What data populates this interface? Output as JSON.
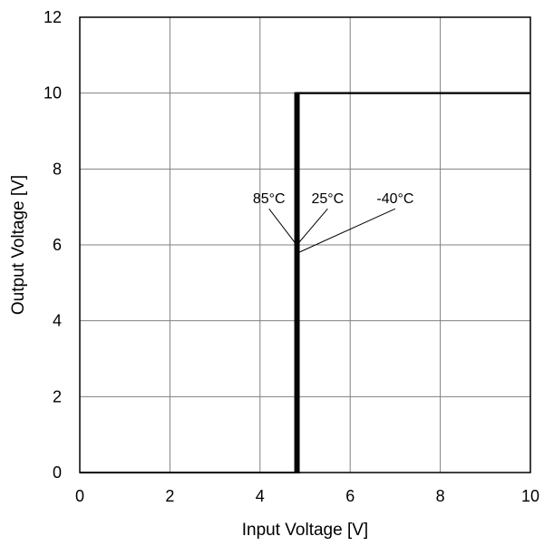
{
  "chart_data": {
    "type": "line",
    "title": "",
    "xlabel": "Input Voltage [V]",
    "ylabel": "Output Voltage [V]",
    "xlim": [
      0,
      10
    ],
    "ylim": [
      0,
      12
    ],
    "xticks": [
      "0",
      "2",
      "4",
      "6",
      "8",
      "10"
    ],
    "yticks": [
      "0",
      "2",
      "4",
      "6",
      "8",
      "10",
      "12"
    ],
    "grid": true,
    "legend": "none",
    "series": [
      {
        "x": [
          0,
          4.78,
          4.78,
          10
        ],
        "y": [
          0,
          0,
          10,
          10
        ]
      },
      {
        "x": [
          0,
          4.82,
          4.82,
          10
        ],
        "y": [
          0,
          0,
          10,
          10
        ]
      },
      {
        "x": [
          0,
          4.86,
          4.86,
          10
        ],
        "y": [
          0,
          0,
          10,
          10
        ]
      }
    ],
    "annotations": [
      {
        "text": "85°C",
        "x": 4.2,
        "y": 7.0,
        "tx": 4.78,
        "ty": 6.05
      },
      {
        "text": "25°C",
        "x": 5.5,
        "y": 7.0,
        "tx": 4.82,
        "ty": 6.0
      },
      {
        "text": "-40°C",
        "x": 7.0,
        "y": 7.0,
        "tx": 4.86,
        "ty": 5.8
      }
    ],
    "colors": {
      "line": "#000000",
      "grid": "#808080"
    }
  }
}
